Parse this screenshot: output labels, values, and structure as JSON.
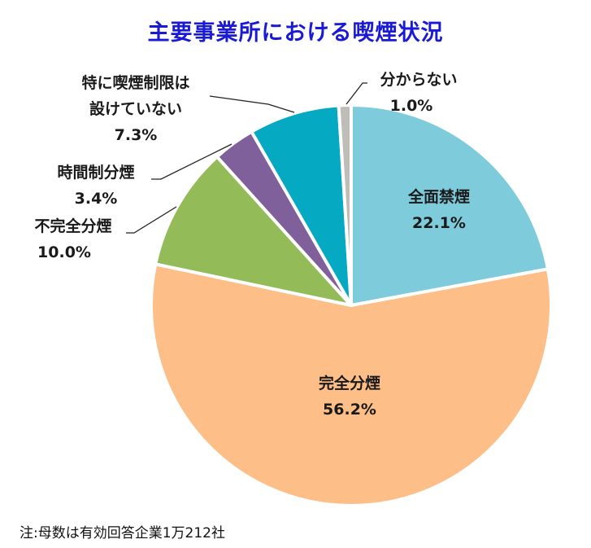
{
  "chart_data": {
    "type": "pie",
    "title": "主要事業所における喫煙状況",
    "start_angle": "12 o'clock, clockwise",
    "slices": [
      {
        "label": "全面禁煙",
        "value": 22.1,
        "display": "22.1%",
        "color": "#7ecbdc"
      },
      {
        "label": "完全分煙",
        "value": 56.2,
        "display": "56.2%",
        "color": "#fdbe87"
      },
      {
        "label": "不完全分煙",
        "value": 10.0,
        "display": "10.0%",
        "color": "#93bb58"
      },
      {
        "label": "時間制分煙",
        "value": 3.4,
        "display": "3.4%",
        "color": "#80609a"
      },
      {
        "label": "特に喫煙制限は設けていない",
        "value": 7.3,
        "display": "7.3%",
        "color": "#05a9c2"
      },
      {
        "label": "分からない",
        "value": 1.0,
        "display": "1.0%",
        "color": "#bfbdb8"
      }
    ],
    "note": "注:母数は有効回答企業1万212社"
  },
  "labels": {
    "zenmen": {
      "name": "全面禁煙",
      "pct": "22.1%"
    },
    "kanzen": {
      "name": "完全分煙",
      "pct": "56.2%"
    },
    "fukanzen": {
      "name": "不完全分煙",
      "pct": "10.0%"
    },
    "jikan": {
      "name": "時間制分煙",
      "pct": "3.4%"
    },
    "tokuni": {
      "line1": "特に喫煙制限は",
      "line2": "設けていない",
      "pct": "7.3%"
    },
    "wakaranai": {
      "name": "分からない",
      "pct": "1.0%"
    }
  }
}
